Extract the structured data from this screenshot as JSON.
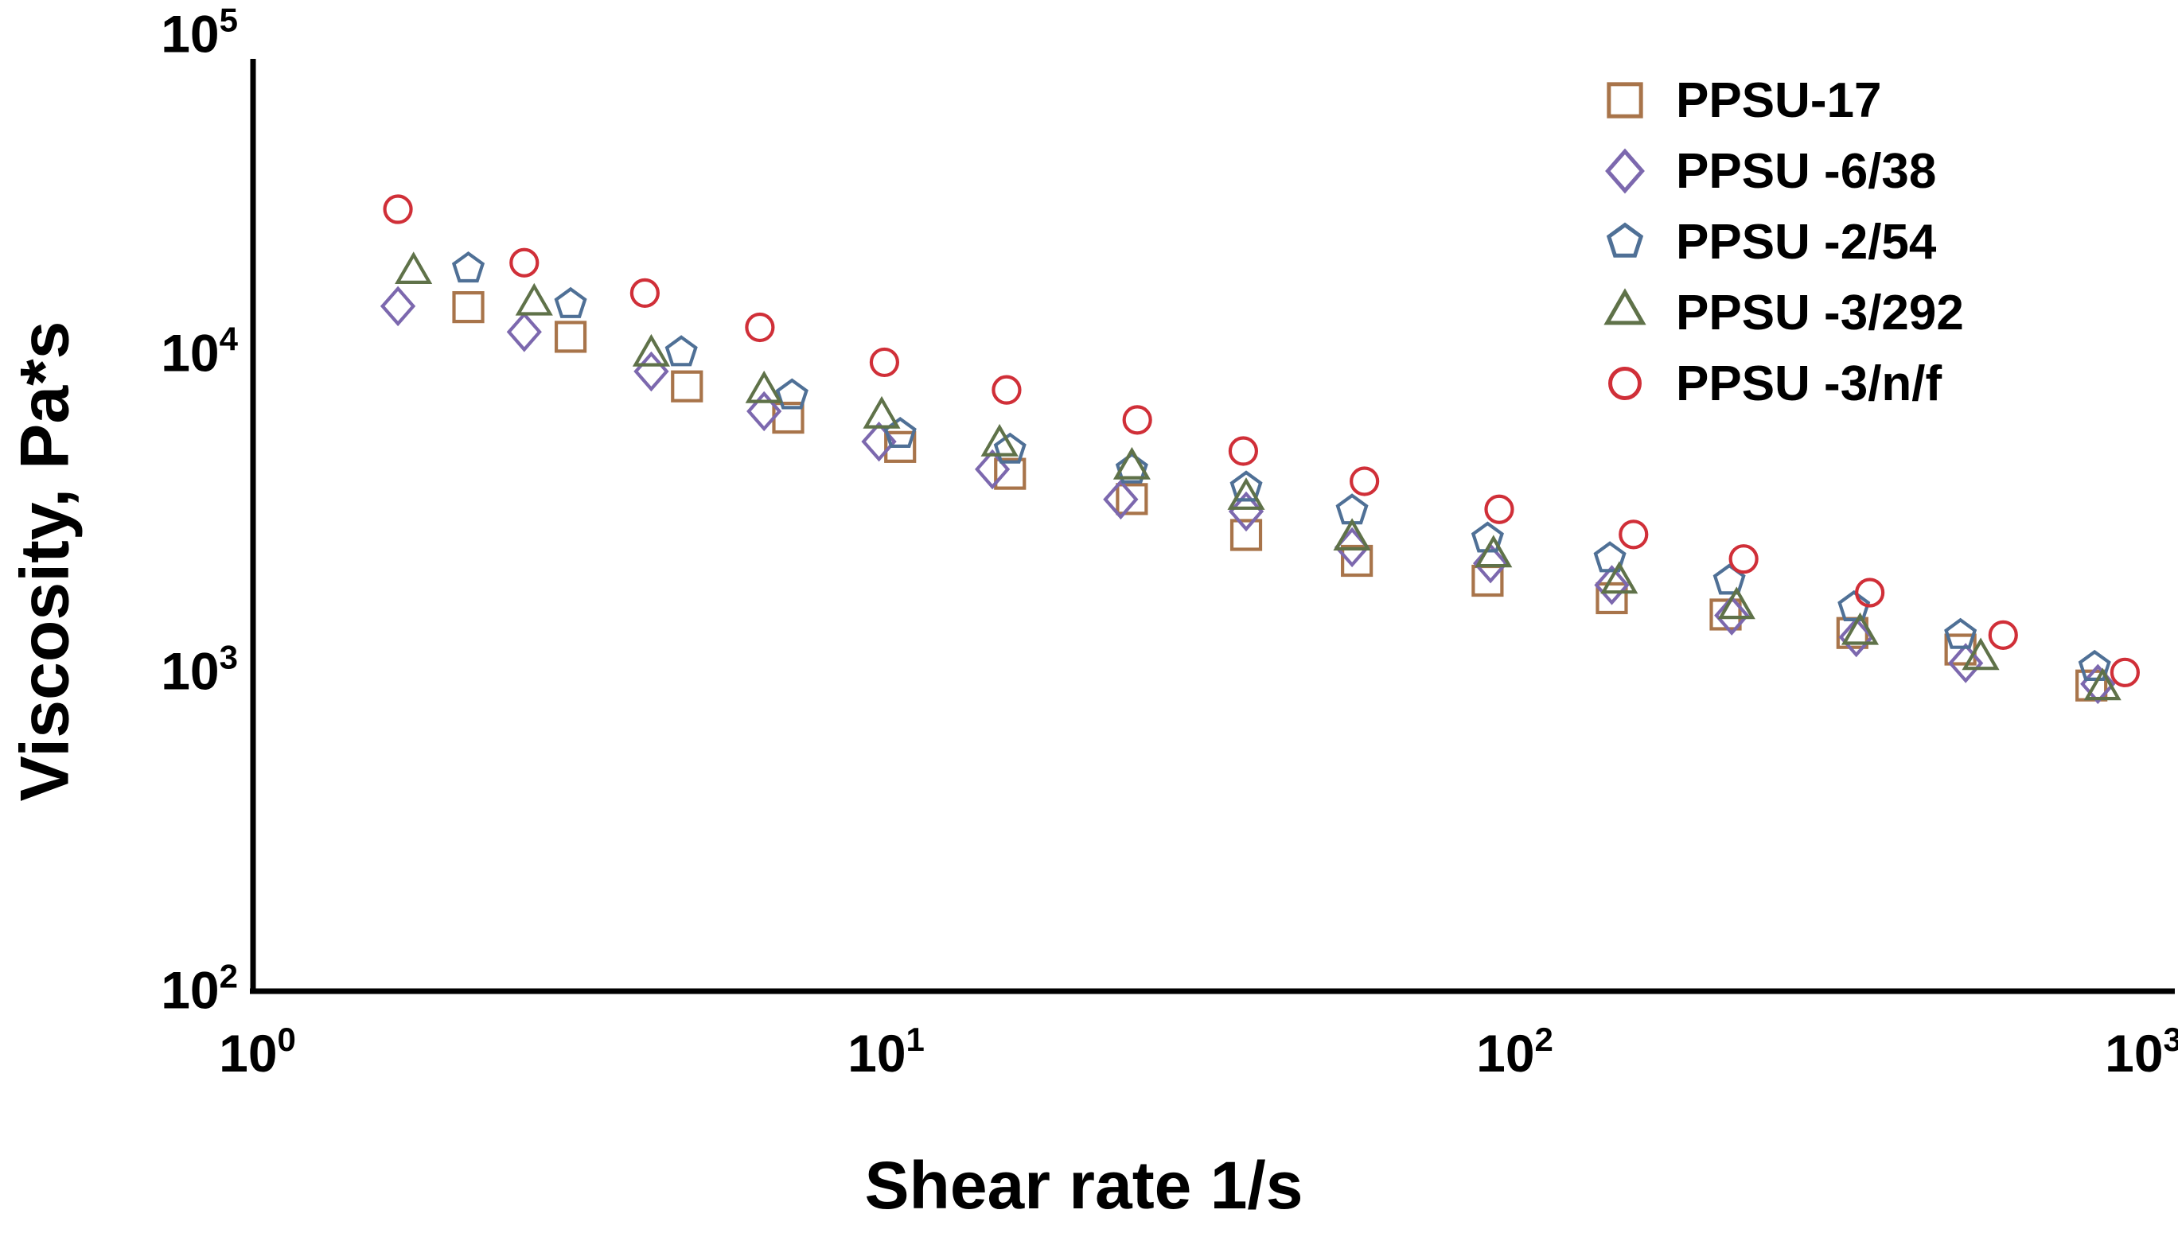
{
  "chart_data": {
    "type": "scatter",
    "title": "",
    "xlabel": "Shear rate 1/s",
    "ylabel": "Viscosity, Pa*s",
    "x_scale": "log",
    "y_scale": "log",
    "xlim": [
      1,
      1000
    ],
    "ylim": [
      100,
      100000
    ],
    "grid": false,
    "legend_position": "top-right",
    "axis_color": "#000000",
    "x_ticks": [
      {
        "base": "10",
        "exp": "0",
        "value": 1
      },
      {
        "base": "10",
        "exp": "1",
        "value": 10
      },
      {
        "base": "10",
        "exp": "2",
        "value": 100
      },
      {
        "base": "10",
        "exp": "3",
        "value": 1000
      }
    ],
    "y_ticks": [
      {
        "base": "10",
        "exp": "2",
        "value": 100
      },
      {
        "base": "10",
        "exp": "3",
        "value": 1000
      },
      {
        "base": "10",
        "exp": "4",
        "value": 10000
      },
      {
        "base": "10",
        "exp": "5",
        "value": 100000
      }
    ],
    "series": [
      {
        "name": "PPSU-17",
        "marker": "square",
        "color": "#A8744A",
        "points": [
          [
            2.2,
            14000
          ],
          [
            3.2,
            11300
          ],
          [
            4.9,
            7900
          ],
          [
            7.1,
            6300
          ],
          [
            10.7,
            5100
          ],
          [
            16,
            4200
          ],
          [
            25,
            3500
          ],
          [
            38,
            2700
          ],
          [
            57,
            2240
          ],
          [
            92,
            1940
          ],
          [
            145,
            1710
          ],
          [
            220,
            1520
          ],
          [
            350,
            1330
          ],
          [
            520,
            1180
          ],
          [
            840,
            910
          ]
        ]
      },
      {
        "name": "PPSU -6/38",
        "marker": "diamond",
        "color": "#7C68AE",
        "points": [
          [
            1.7,
            14100
          ],
          [
            2.7,
            11700
          ],
          [
            4.3,
            8800
          ],
          [
            6.5,
            6600
          ],
          [
            9.9,
            5300
          ],
          [
            15,
            4340
          ],
          [
            24,
            3490
          ],
          [
            38,
            3200
          ],
          [
            56,
            2470
          ],
          [
            93,
            2200
          ],
          [
            145,
            1880
          ],
          [
            225,
            1510
          ],
          [
            355,
            1290
          ],
          [
            530,
            1070
          ],
          [
            860,
            920
          ]
        ]
      },
      {
        "name": "PPSU -2/54",
        "marker": "pentagon",
        "color": "#4F7096",
        "points": [
          [
            2.2,
            18500
          ],
          [
            3.2,
            14300
          ],
          [
            4.8,
            10100
          ],
          [
            7.2,
            7400
          ],
          [
            10.7,
            5600
          ],
          [
            16,
            5000
          ],
          [
            25,
            4330
          ],
          [
            38,
            3800
          ],
          [
            56,
            3220
          ],
          [
            92,
            2630
          ],
          [
            144,
            2280
          ],
          [
            223,
            1940
          ],
          [
            352,
            1600
          ],
          [
            520,
            1310
          ],
          [
            850,
            1040
          ]
        ]
      },
      {
        "name": "PPSU -3/292",
        "marker": "triangle",
        "color": "#5F7249",
        "points": [
          [
            1.8,
            17900
          ],
          [
            2.8,
            14250
          ],
          [
            4.3,
            9860
          ],
          [
            6.5,
            7570
          ],
          [
            10,
            6300
          ],
          [
            15.4,
            5150
          ],
          [
            25,
            4360
          ],
          [
            38,
            3500
          ],
          [
            56,
            2610
          ],
          [
            94,
            2310
          ],
          [
            149,
            1910
          ],
          [
            229,
            1590
          ],
          [
            360,
            1320
          ],
          [
            560,
            1100
          ],
          [
            875,
            885
          ]
        ]
      },
      {
        "name": "PPSU -3/n/f",
        "marker": "circle",
        "color": "#D02F38",
        "points": [
          [
            1.7,
            28400
          ],
          [
            2.7,
            19300
          ],
          [
            4.2,
            15500
          ],
          [
            6.4,
            12100
          ],
          [
            10.1,
            9400
          ],
          [
            15.8,
            7700
          ],
          [
            25.5,
            6200
          ],
          [
            37.6,
            4950
          ],
          [
            58.6,
            3980
          ],
          [
            96,
            3250
          ],
          [
            157,
            2710
          ],
          [
            235,
            2270
          ],
          [
            373,
            1780
          ],
          [
            608,
            1310
          ],
          [
            950,
            1000
          ]
        ]
      }
    ]
  }
}
